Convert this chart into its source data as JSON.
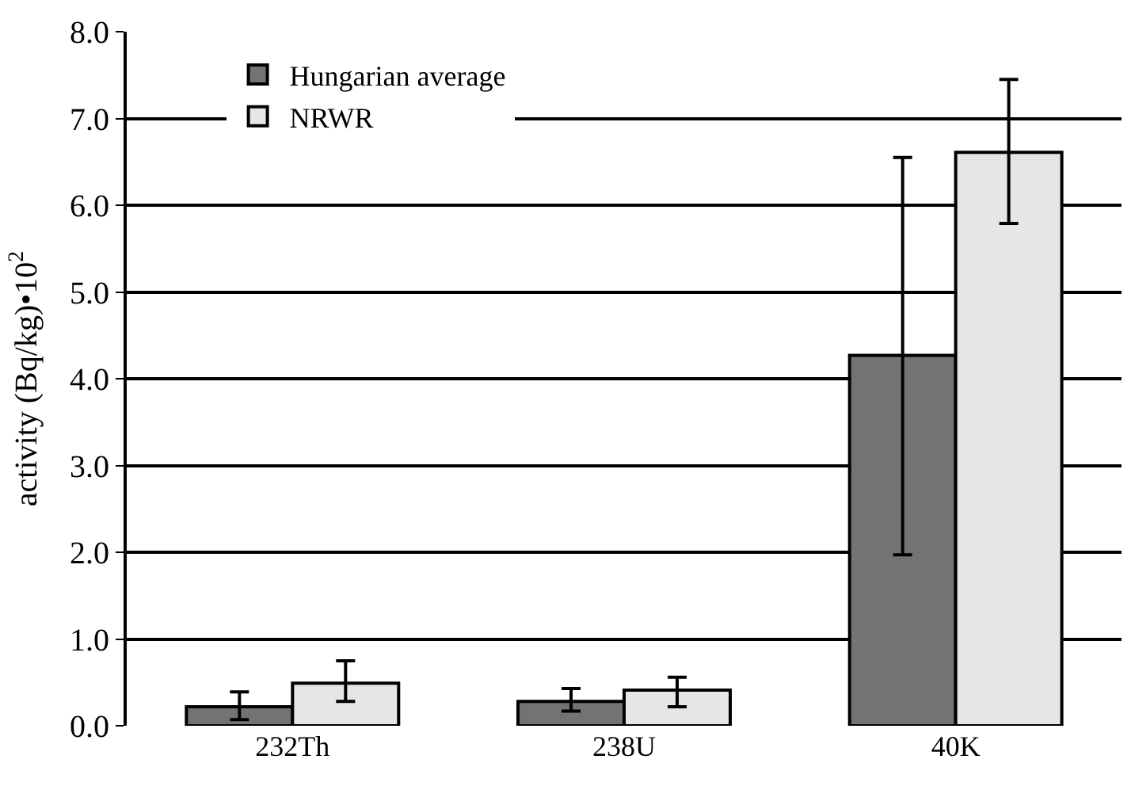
{
  "chart_data": {
    "type": "bar",
    "ylabel": "activity (Bq/kg)•10$^{2}$",
    "categories": [
      "232Th",
      "238U",
      "40K"
    ],
    "series": [
      {
        "name": "Hungarian average",
        "color": "#737373",
        "values": [
          0.22,
          0.28,
          4.27
        ],
        "errors": [
          [
            0.07,
            0.39
          ],
          [
            0.17,
            0.43
          ],
          [
            1.97,
            6.55
          ]
        ]
      },
      {
        "name": "NRWR",
        "color": "#e6e6e6",
        "values": [
          0.49,
          0.41,
          6.61
        ],
        "errors": [
          [
            0.28,
            0.75
          ],
          [
            0.22,
            0.56
          ],
          [
            5.79,
            7.45
          ]
        ]
      }
    ],
    "ylim": [
      0,
      8
    ],
    "yticks": [
      {
        "value": 0,
        "label": "0.0"
      },
      {
        "value": 1,
        "label": "1.0"
      },
      {
        "value": 2,
        "label": "2.0"
      },
      {
        "value": 3,
        "label": "3.0"
      },
      {
        "value": 4,
        "label": "4.0"
      },
      {
        "value": 5,
        "label": "5.0"
      },
      {
        "value": 6,
        "label": "6.0"
      },
      {
        "value": 7,
        "label": "7.0"
      },
      {
        "value": 8,
        "label": "8.0"
      }
    ],
    "grid": "y",
    "legend": "top left"
  }
}
